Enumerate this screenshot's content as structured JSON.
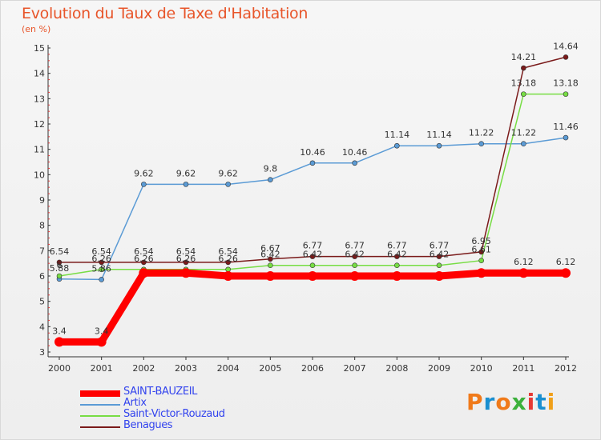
{
  "title": "Evolution du Taux de Taxe d'Habitation",
  "unit_label": "(en %)",
  "logo": {
    "text": "Proxiti",
    "colors": [
      "#f07a1a",
      "#1a8fd0",
      "#f07a1a",
      "#3bb03b",
      "#e53935",
      "#1a8fd0",
      "#f0a01a"
    ]
  },
  "chart_data": {
    "type": "line",
    "title": "Evolution du Taux de Taxe d'Habitation",
    "ylabel": "(en %)",
    "xlabel": "",
    "x": [
      "2000",
      "2001",
      "2002",
      "2003",
      "2004",
      "2005",
      "2006",
      "2007",
      "2008",
      "2009",
      "2010",
      "2011",
      "2012"
    ],
    "ylim": [
      3,
      15
    ],
    "yticks": [
      "3",
      "4",
      "5",
      "6",
      "7",
      "8",
      "9",
      "10",
      "11",
      "12",
      "13",
      "14",
      "15"
    ],
    "grid": false,
    "legend_position": "bottom-left",
    "series": [
      {
        "name": "SAINT-BAUZEIL",
        "color": "#ff0000",
        "values": [
          3.4,
          3.4,
          6.12,
          6.12,
          6,
          6,
          6,
          6,
          6,
          6,
          6.12,
          6.12,
          6.12
        ],
        "labels": [
          "3.4",
          "3.4",
          "",
          "",
          "",
          "",
          "",
          "",
          "",
          "",
          "",
          "6.12",
          "6.12"
        ]
      },
      {
        "name": "Artix",
        "color": "#5b9bd5",
        "values": [
          5.88,
          5.86,
          9.62,
          9.62,
          9.62,
          9.8,
          10.46,
          10.46,
          11.14,
          11.14,
          11.22,
          11.22,
          11.46
        ],
        "labels": [
          "5.88",
          "5.86",
          "9.62",
          "9.62",
          "9.62",
          "9.8",
          "10.46",
          "10.46",
          "11.14",
          "11.14",
          "11.22",
          "11.22",
          "11.46"
        ]
      },
      {
        "name": "Saint-Victor-Rouzaud",
        "color": "#77dd44",
        "values": [
          6,
          6.26,
          6.26,
          6.26,
          6.26,
          6.42,
          6.42,
          6.42,
          6.42,
          6.42,
          6.61,
          13.18,
          13.18
        ],
        "labels": [
          "6",
          "6.26",
          "6.26",
          "6.26",
          "6.26",
          "6.42",
          "6.42",
          "6.42",
          "6.42",
          "6.42",
          "6.61",
          "13.18",
          "13.18"
        ]
      },
      {
        "name": "Benagues",
        "color": "#7a1a1a",
        "values": [
          6.54,
          6.54,
          6.54,
          6.54,
          6.54,
          6.67,
          6.77,
          6.77,
          6.77,
          6.77,
          6.95,
          14.21,
          14.64
        ],
        "labels": [
          "6.54",
          "6.54",
          "6.54",
          "6.54",
          "6.54",
          "6.67",
          "6.77",
          "6.77",
          "6.77",
          "6.77",
          "6.95",
          "14.21",
          "14.64"
        ]
      }
    ]
  }
}
